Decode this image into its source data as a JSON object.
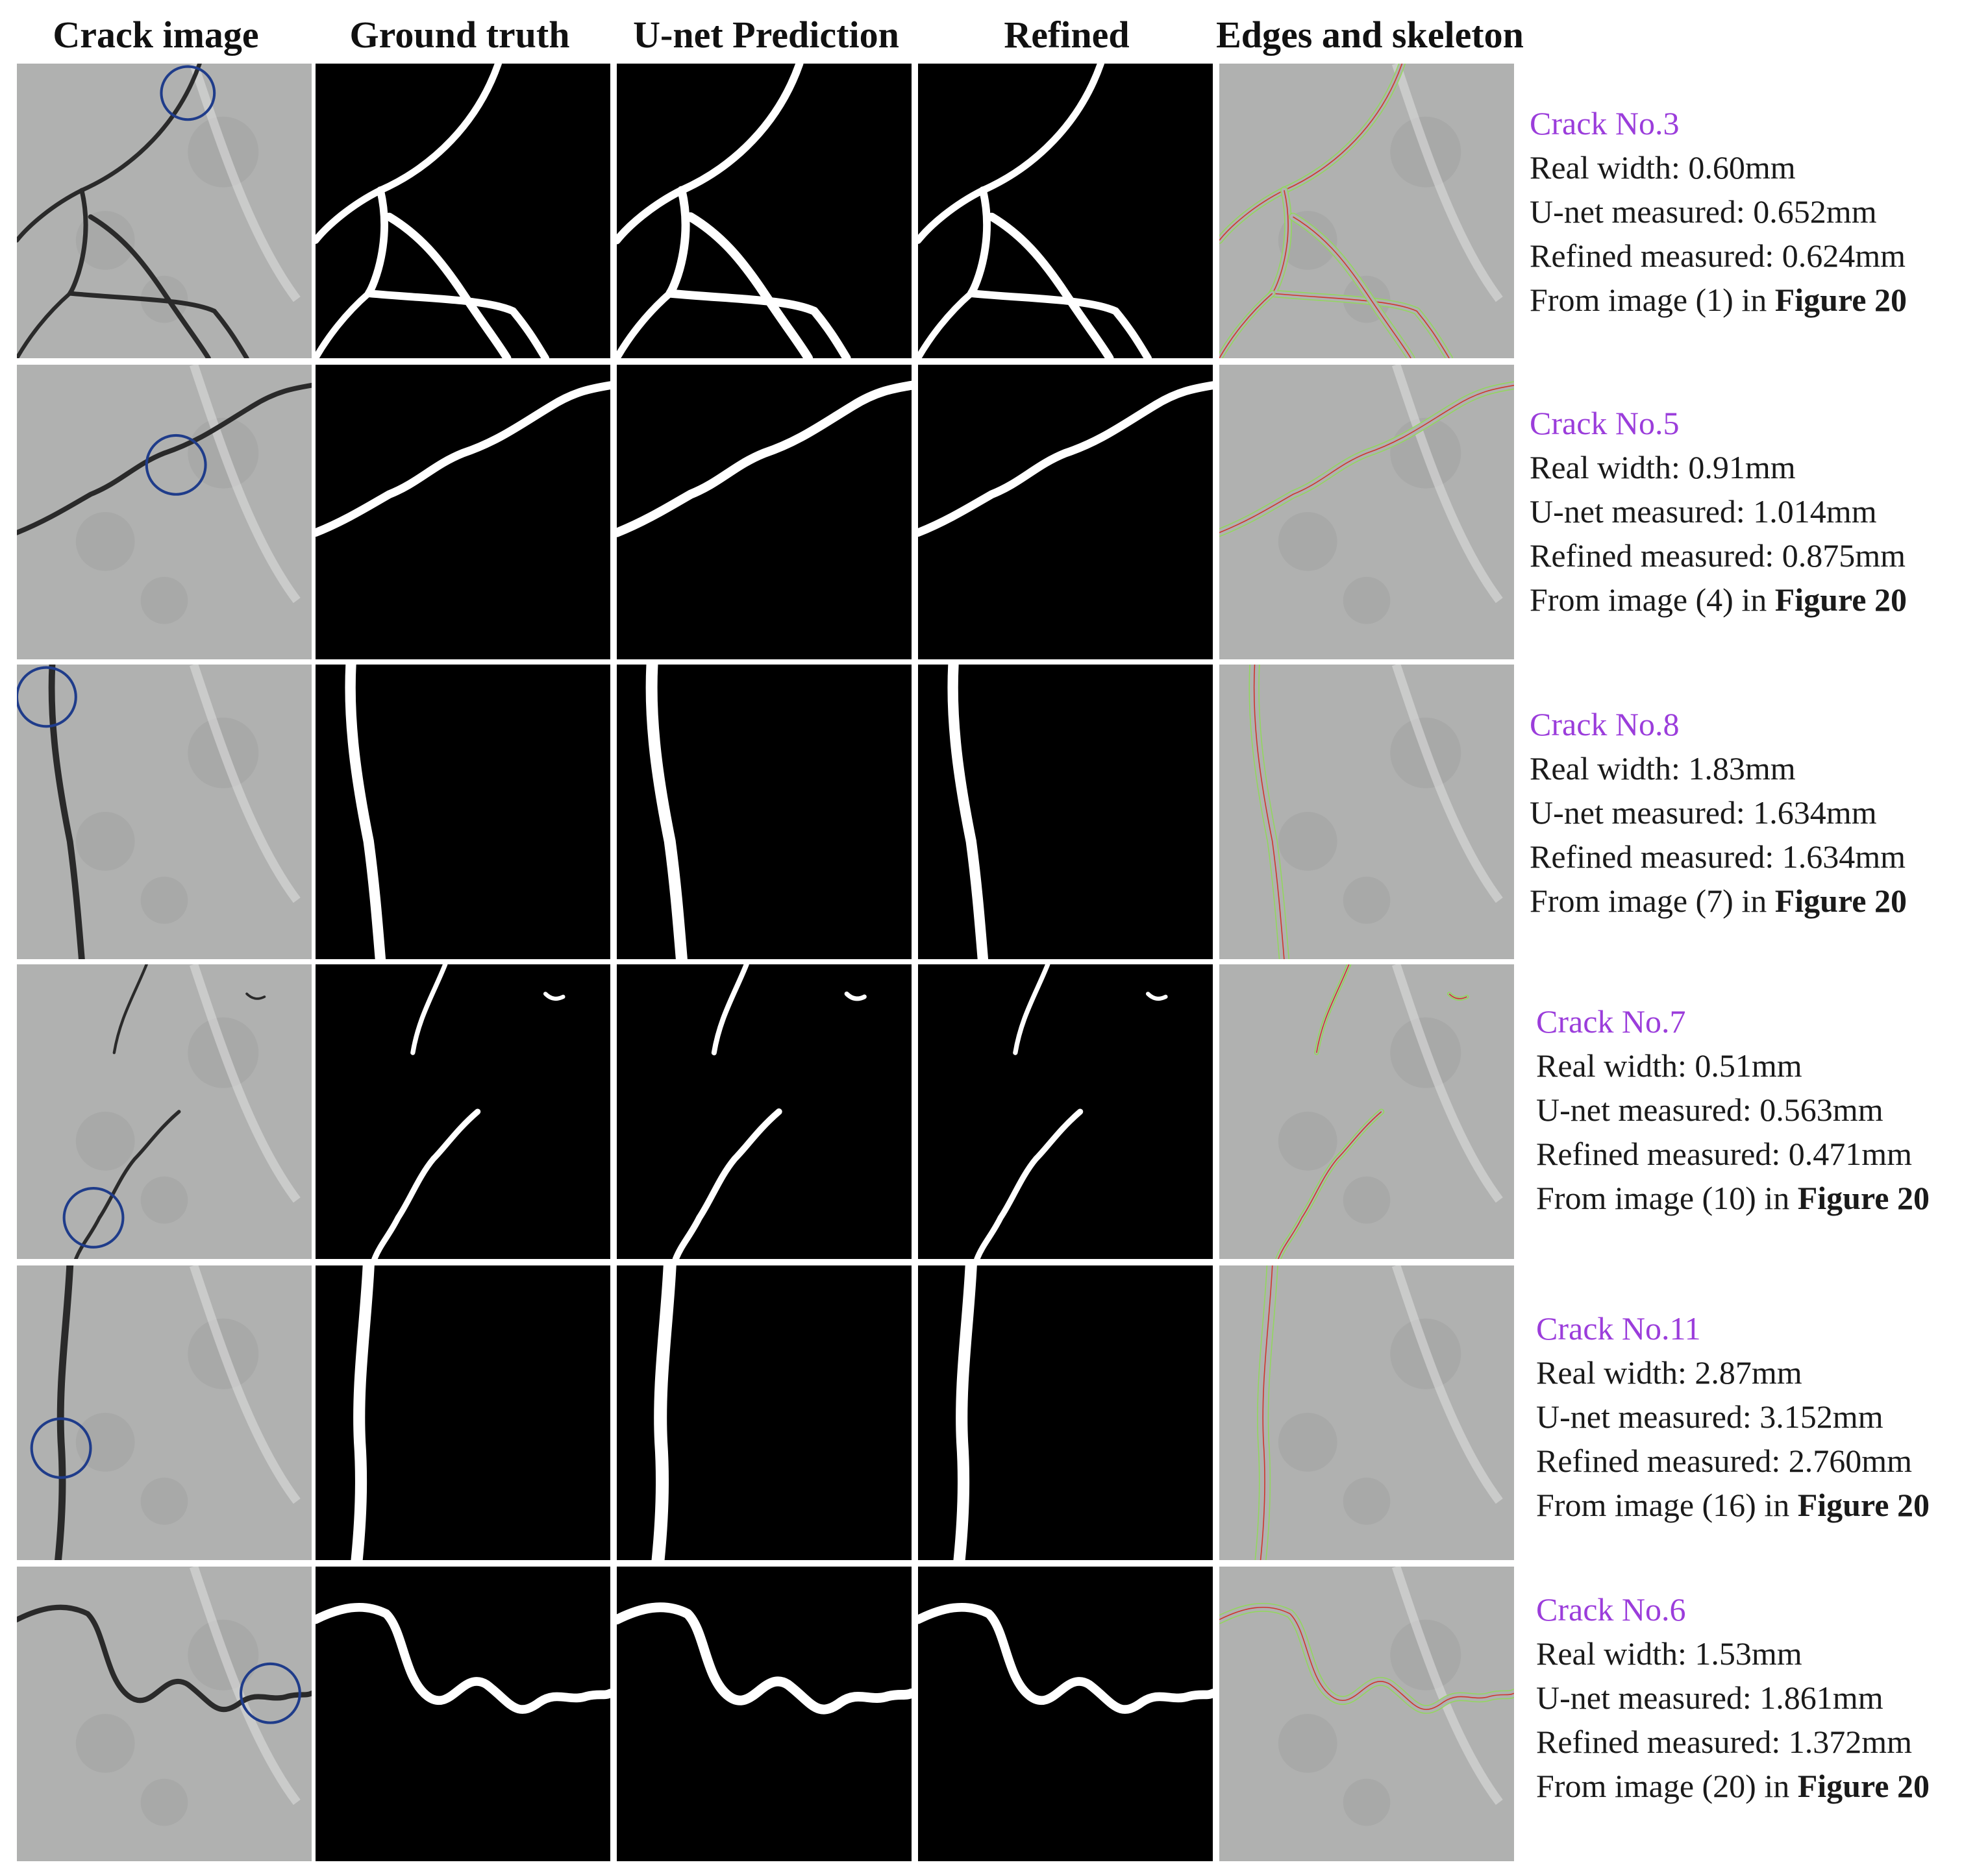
{
  "headers": [
    "Crack image",
    "Ground truth",
    "U-net Prediction",
    "Refined",
    "Edges and skeleton"
  ],
  "rows": [
    {
      "title": "Crack No.3",
      "real": "Real width: 0.60mm",
      "unet": "U-net measured: 0.652mm",
      "refined": "Refined measured: 0.624mm",
      "from_prefix": "From image (1) in ",
      "figure": "Figure 20"
    },
    {
      "title": "Crack No.5",
      "real": "Real width: 0.91mm",
      "unet": "U-net measured: 1.014mm",
      "refined": "Refined measured: 0.875mm",
      "from_prefix": "From image (4) in ",
      "figure": "Figure 20"
    },
    {
      "title": "Crack No.8",
      "real": "Real width: 1.83mm",
      "unet": "U-net measured: 1.634mm",
      "refined": "Refined measured: 1.634mm",
      "from_prefix": "From image (7) in ",
      "figure": "Figure 20"
    },
    {
      "title": "Crack No.7",
      "real": "Real width: 0.51mm",
      "unet": "U-net measured: 0.563mm",
      "refined": "Refined measured: 0.471mm",
      "from_prefix": "From image (10) in ",
      "figure": "Figure 20"
    },
    {
      "title": "Crack No.11",
      "real": "Real width: 2.87mm",
      "unet": "U-net measured: 3.152mm",
      "refined": "Refined measured: 2.760mm",
      "from_prefix": "From image (16) in ",
      "figure": "Figure 20"
    },
    {
      "title": "Crack No.6",
      "real": "Real width: 1.53mm",
      "unet": "U-net measured: 1.861mm",
      "refined": "Refined measured: 1.372mm",
      "from_prefix": "From image (20) in ",
      "figure": "Figure 20"
    }
  ],
  "colors": {
    "concrete": "#b0b1b0",
    "crack": "#2a2a2a",
    "mask_background": "#000000",
    "mask_crack": "#ffffff",
    "marker_circle": "#1f3c8a",
    "edge_line": "#8fdc55",
    "skeleton_line": "#d0332c",
    "title_color": "#9b3ddb"
  }
}
